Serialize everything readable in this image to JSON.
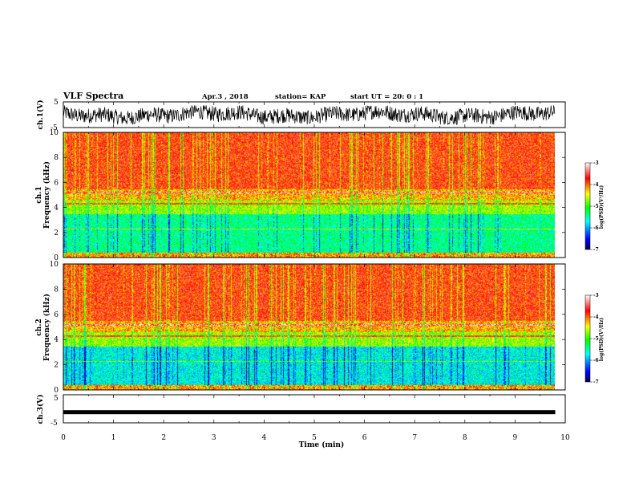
{
  "header": {
    "title": "VLF Spectra",
    "date": "Apr.3 , 2018",
    "station": "station= KAP",
    "start_ut": "start UT = 20: 0 : 1"
  },
  "chart_data": [
    {
      "type": "line",
      "title": "VLF Spectra",
      "ylabel": "ch.1(V)",
      "xlim": [
        0,
        10
      ],
      "ylim": [
        -5,
        5
      ],
      "y_ticks": [
        -5,
        5
      ],
      "series": [
        {
          "x_range": [
            0,
            9.8
          ],
          "y_range": [
            -3.8,
            3.6
          ],
          "description_only": false
        }
      ]
    },
    {
      "type": "heatmap",
      "ylabel": "ch.1 Frequency (kHz)",
      "xlim": [
        0,
        10
      ],
      "ylim": [
        0,
        10
      ],
      "y_ticks": [
        0,
        2,
        4,
        6,
        8,
        10
      ],
      "data_x_range": [
        0,
        9.8
      ],
      "colorbar": {
        "label": "log(PSD)(V²/Hz)",
        "range": [
          -7,
          -3
        ],
        "ticks": [
          -3,
          -4,
          -5,
          -6,
          -7
        ]
      }
    },
    {
      "type": "heatmap",
      "ylabel": "ch.2 Frequency (kHz)",
      "xlim": [
        0,
        10
      ],
      "ylim": [
        0,
        10
      ],
      "y_ticks": [
        0,
        2,
        4,
        6,
        8,
        10
      ],
      "data_x_range": [
        0,
        9.8
      ],
      "colorbar": {
        "label": "log(PSD)(V²/Hz)",
        "range": [
          -7,
          -3
        ],
        "ticks": [
          -3,
          -4,
          -5,
          -6,
          -7
        ]
      }
    },
    {
      "type": "line",
      "ylabel": "ch.3(V)",
      "xlabel": "Time (min)",
      "xlim": [
        0,
        10
      ],
      "ylim": [
        -5,
        5
      ],
      "y_ticks": [
        -5,
        5
      ],
      "x_ticks": [
        0,
        1,
        2,
        3,
        4,
        5,
        6,
        7,
        8,
        9,
        10
      ],
      "series": [
        {
          "x_range": [
            0,
            9.8
          ],
          "y_constant": -1.2
        }
      ]
    }
  ],
  "colors": {
    "colormap": [
      "#000050",
      "#0000ff",
      "#00ffff",
      "#00ff00",
      "#ffff00",
      "#ff0000",
      "#ffffff"
    ]
  }
}
